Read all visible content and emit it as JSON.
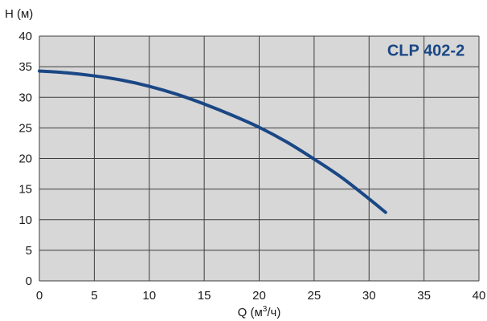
{
  "chart_data": {
    "type": "line",
    "ylabel": "H (м)",
    "xlabel_main": "Q (м",
    "xlabel_sup": "3",
    "xlabel_end": "/ч)",
    "model_label": "CLP 402-2",
    "xlim": [
      0,
      40
    ],
    "ylim": [
      0,
      40
    ],
    "x_ticks": [
      0,
      5,
      10,
      15,
      20,
      25,
      30,
      35,
      40
    ],
    "y_ticks": [
      0,
      5,
      10,
      15,
      20,
      25,
      30,
      35,
      40
    ],
    "grid": true,
    "colors": {
      "curve": "#1a4785",
      "label": "#1a4785",
      "plot_bg": "#d7d7d7",
      "grid": "#3c3c3c"
    },
    "series": [
      {
        "x": [
          0,
          2.5,
          5,
          7.5,
          10,
          12.5,
          15,
          17.5,
          20,
          22.5,
          25,
          27.5,
          30,
          31.5
        ],
        "y": [
          34.3,
          34.0,
          33.5,
          32.8,
          31.8,
          30.5,
          28.9,
          27.1,
          25.1,
          22.7,
          19.9,
          16.9,
          13.4,
          11.2
        ]
      }
    ]
  }
}
